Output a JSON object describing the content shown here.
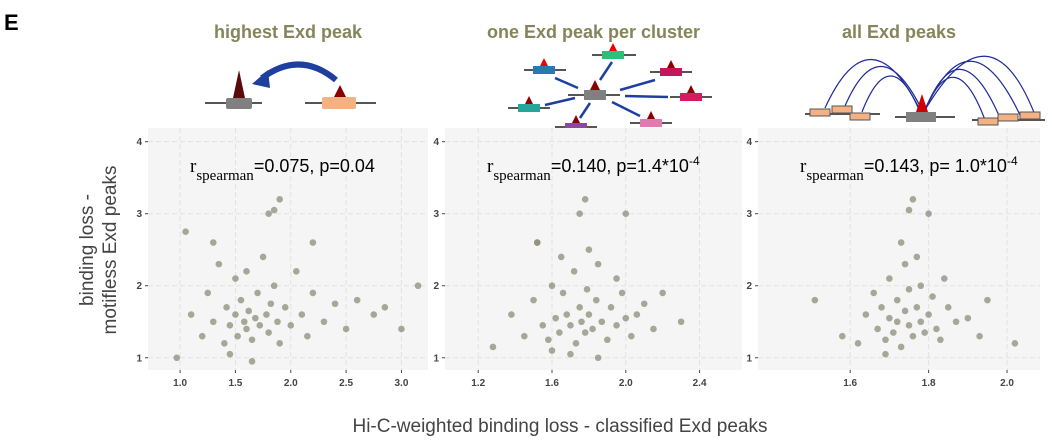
{
  "panel_label": "E",
  "xlabel": "Hi-C-weighted binding loss - classified Exd peaks",
  "ylabel": [
    "binding loss -",
    "motifless Exd peaks"
  ],
  "chart_data": [
    {
      "type": "scatter",
      "title": "highest Exd peak",
      "annotation": {
        "r": "r",
        "sub": "spearman",
        "text": "=0.075, p=0.04"
      },
      "color": "#8c8c78",
      "grid": true,
      "xlim": [
        0.71,
        3.24
      ],
      "ylim": [
        0.83,
        4.19
      ],
      "xticks": [
        {
          "value": 1,
          "label": "1.0"
        },
        1.5,
        {
          "value": 2,
          "label": "2.0"
        },
        2.5,
        {
          "value": 3,
          "label": "3.0"
        }
      ],
      "yticks": [
        1,
        2,
        3,
        4
      ],
      "x": [
        1.05,
        0.97,
        1.1,
        1.2,
        1.25,
        1.3,
        1.35,
        1.4,
        1.42,
        1.45,
        1.5,
        1.5,
        1.52,
        1.55,
        1.58,
        1.6,
        1.6,
        1.62,
        1.65,
        1.68,
        1.7,
        1.72,
        1.75,
        1.78,
        1.8,
        1.82,
        1.85,
        1.88,
        1.9,
        1.95,
        2.0,
        2.05,
        2.1,
        2.15,
        2.2,
        2.3,
        2.4,
        2.5,
        2.6,
        2.75,
        2.85,
        3.0,
        3.15,
        1.8,
        1.9,
        1.85,
        1.3,
        1.45,
        1.65,
        2.2
      ],
      "y": [
        2.75,
        1.0,
        1.6,
        1.3,
        1.9,
        1.5,
        2.3,
        1.2,
        1.7,
        1.45,
        1.6,
        2.1,
        1.3,
        1.8,
        1.5,
        1.4,
        2.2,
        1.65,
        1.25,
        1.55,
        1.9,
        1.45,
        2.4,
        1.6,
        1.35,
        1.75,
        2.0,
        1.5,
        1.2,
        1.7,
        1.45,
        2.2,
        1.6,
        1.3,
        1.9,
        1.5,
        1.75,
        1.4,
        1.8,
        1.6,
        1.7,
        1.4,
        2.0,
        3.0,
        3.2,
        3.05,
        2.6,
        1.05,
        0.95,
        2.6
      ]
    },
    {
      "type": "scatter",
      "title": "one Exd peak per cluster",
      "annotation": {
        "r": "r",
        "sub": "spearman",
        "text": "=0.140, p=1.4*10",
        "sup": "-4"
      },
      "color": "#8c8c78",
      "grid": true,
      "xlim": [
        1.02,
        2.63
      ],
      "ylim": [
        0.83,
        4.19
      ],
      "xticks": [
        {
          "value": 1.2,
          "label": "1.2"
        },
        1.6,
        {
          "value": 2,
          "label": "2.0"
        },
        2.4
      ],
      "yticks": [
        1,
        2,
        3,
        4
      ],
      "x": [
        1.28,
        1.38,
        1.45,
        1.5,
        1.52,
        1.55,
        1.58,
        1.6,
        1.62,
        1.64,
        1.66,
        1.68,
        1.7,
        1.72,
        1.73,
        1.75,
        1.76,
        1.78,
        1.79,
        1.8,
        1.82,
        1.84,
        1.85,
        1.87,
        1.9,
        1.92,
        1.95,
        1.98,
        2.0,
        2.03,
        2.06,
        2.1,
        2.15,
        2.2,
        2.3,
        1.78,
        1.75,
        2.0,
        1.52,
        1.7,
        1.85,
        1.65,
        1.95,
        1.6,
        1.8
      ],
      "y": [
        1.15,
        1.6,
        1.3,
        1.8,
        2.6,
        1.45,
        1.25,
        2.0,
        1.55,
        1.35,
        1.9,
        1.6,
        1.45,
        2.2,
        1.2,
        1.7,
        1.5,
        1.35,
        1.95,
        1.6,
        1.4,
        1.8,
        2.3,
        1.5,
        1.25,
        1.7,
        1.45,
        1.9,
        1.55,
        1.3,
        1.6,
        1.75,
        1.4,
        1.9,
        1.5,
        3.2,
        3.0,
        3.0,
        2.6,
        1.05,
        1.0,
        2.4,
        2.1,
        1.1,
        2.5
      ]
    },
    {
      "type": "scatter",
      "title": "all Exd peaks",
      "annotation": {
        "r": "r",
        "sub": "spearman",
        "text": "=0.143, p= 1.0*10",
        "sup": "-4"
      },
      "color": "#8c8c78",
      "grid": true,
      "xlim": [
        1.365,
        2.084
      ],
      "ylim": [
        0.83,
        4.19
      ],
      "xticks": [
        1.6,
        1.8,
        {
          "value": 2,
          "label": "2.0"
        }
      ],
      "yticks": [
        1,
        2,
        3,
        4
      ],
      "x": [
        1.51,
        1.58,
        1.62,
        1.64,
        1.66,
        1.67,
        1.68,
        1.69,
        1.7,
        1.7,
        1.71,
        1.72,
        1.72,
        1.73,
        1.74,
        1.74,
        1.75,
        1.75,
        1.76,
        1.77,
        1.78,
        1.78,
        1.79,
        1.8,
        1.81,
        1.82,
        1.83,
        1.85,
        1.87,
        1.9,
        1.93,
        1.95,
        2.02,
        1.76,
        1.8,
        1.75,
        1.73,
        1.69,
        1.77,
        1.84
      ],
      "y": [
        1.8,
        1.3,
        1.2,
        1.6,
        1.9,
        1.4,
        1.7,
        1.25,
        1.55,
        2.1,
        1.35,
        1.8,
        1.5,
        1.15,
        1.65,
        2.3,
        1.45,
        1.95,
        1.3,
        1.7,
        1.5,
        2.0,
        1.35,
        1.6,
        1.85,
        1.4,
        1.25,
        1.7,
        1.5,
        1.55,
        1.3,
        1.8,
        1.2,
        3.2,
        3.0,
        3.05,
        2.6,
        1.05,
        2.4,
        2.1
      ]
    }
  ]
}
